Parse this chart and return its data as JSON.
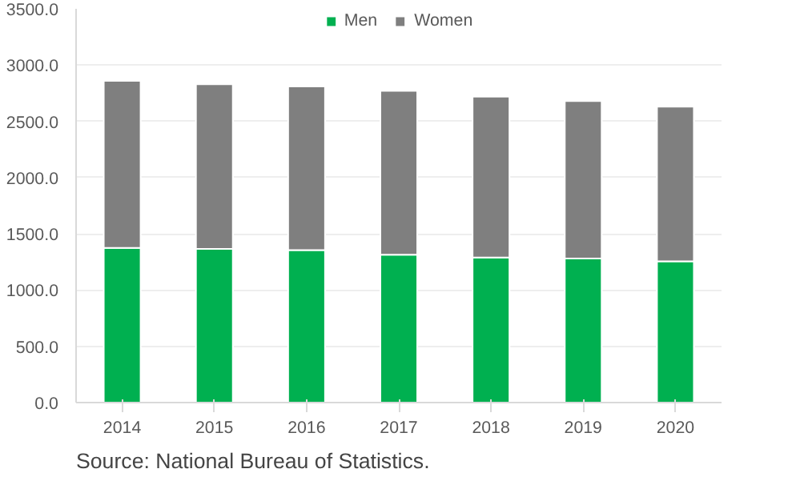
{
  "chart_data": {
    "type": "bar",
    "stacked": true,
    "categories": [
      "2014",
      "2015",
      "2016",
      "2017",
      "2018",
      "2019",
      "2020"
    ],
    "series": [
      {
        "name": "Men",
        "color": "#00b050",
        "values": [
          1375,
          1365,
          1355,
          1315,
          1290,
          1280,
          1255
        ]
      },
      {
        "name": "Women",
        "color": "#7f7f7f",
        "values": [
          1485,
          1465,
          1455,
          1455,
          1430,
          1400,
          1375
        ]
      }
    ],
    "ylim": [
      0,
      3500
    ],
    "yticks": [
      {
        "value": 0,
        "label": "0.0"
      },
      {
        "value": 500,
        "label": "500.0"
      },
      {
        "value": 1000,
        "label": "1000.0"
      },
      {
        "value": 1500,
        "label": "1500.0"
      },
      {
        "value": 2000,
        "label": "2000.0"
      },
      {
        "value": 2500,
        "label": "2500.0"
      },
      {
        "value": 3000,
        "label": "3000.0"
      },
      {
        "value": 3500,
        "label": "3500.0"
      }
    ],
    "grid": "y",
    "legend": "top",
    "annotations": [
      "Source: National Bureau of Statistics."
    ]
  }
}
